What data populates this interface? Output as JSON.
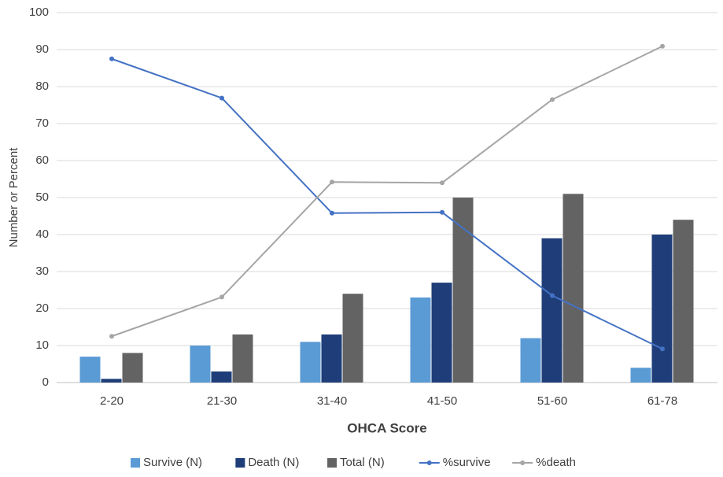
{
  "chart_data": {
    "type": "bar-line",
    "x_label": "OHCA Score",
    "y_label": "Number or Percent",
    "categories": [
      "2-20",
      "21-30",
      "31-40",
      "41-50",
      "51-60",
      "61-78"
    ],
    "series": [
      {
        "name": "Survive (N)",
        "kind": "bar",
        "color": "#5b9bd5",
        "values": [
          7,
          10,
          11,
          23,
          12,
          4
        ]
      },
      {
        "name": "Death (N)",
        "kind": "bar",
        "color": "#1f3e79",
        "values": [
          1,
          3,
          13,
          27,
          39,
          40
        ]
      },
      {
        "name": "Total (N)",
        "kind": "bar",
        "color": "#636363",
        "values": [
          8,
          13,
          24,
          50,
          51,
          44
        ]
      },
      {
        "name": "%survive",
        "kind": "line",
        "color": "#4472c4",
        "values": [
          87.5,
          76.9,
          45.8,
          46,
          23.5,
          9.1
        ]
      },
      {
        "name": "%death",
        "kind": "line",
        "color": "#a5a5a5",
        "values": [
          12.5,
          23.1,
          54.2,
          54,
          76.5,
          90.9
        ]
      }
    ],
    "ylim": [
      0,
      100
    ],
    "yticks": [
      0,
      10,
      20,
      30,
      40,
      50,
      60,
      70,
      80,
      90,
      100
    ],
    "grid": true,
    "legend": "bottom"
  }
}
